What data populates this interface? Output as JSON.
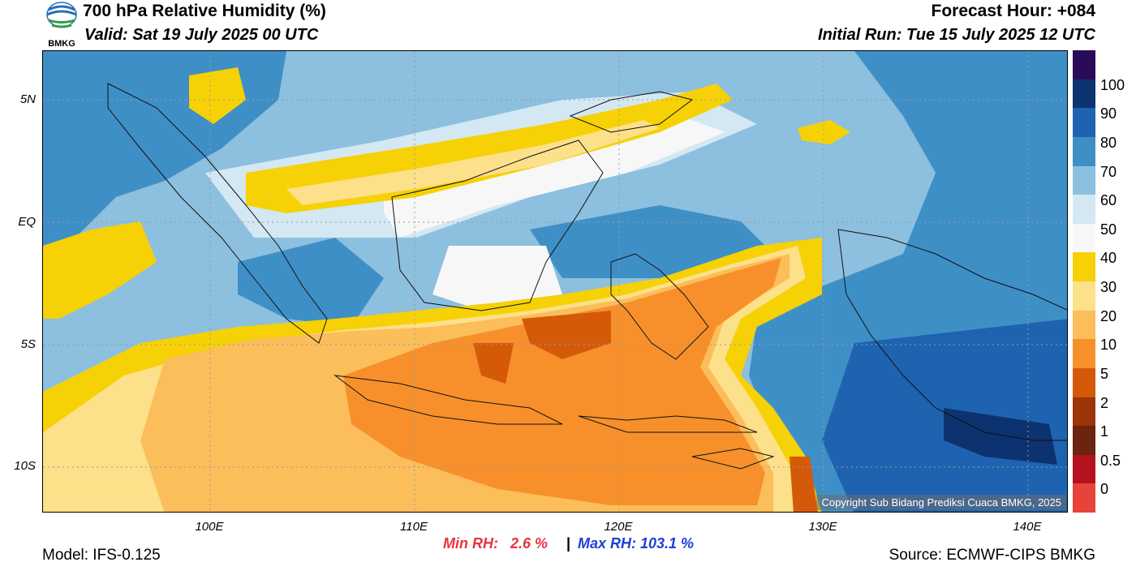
{
  "header": {
    "title": "700 hPa Relative Humidity (%)",
    "valid": "Valid: Sat 19 July 2025 00 UTC",
    "forecast_hour": "Forecast Hour: +084",
    "initial_run": "Initial Run: Tue 15 July 2025 12 UTC",
    "logo_text": "BMKG"
  },
  "map": {
    "lat_labels": [
      "5N",
      "EQ",
      "5S",
      "10S"
    ],
    "lon_labels": [
      "100E",
      "110E",
      "120E",
      "130E",
      "140E"
    ],
    "copyright": "Copyright Sub Bidang Prediksi Cuaca BMKG, 2025"
  },
  "legend": {
    "labels": [
      "100",
      "90",
      "80",
      "70",
      "60",
      "50",
      "40",
      "30",
      "20",
      "10",
      "5",
      "2",
      "1",
      "0.5",
      "0"
    ],
    "colors": [
      "#2a0b57",
      "#0d3270",
      "#1e63b0",
      "#3f8fc7",
      "#8dbfdf",
      "#d3e8f3",
      "#f7f7f7",
      "#f6d106",
      "#fde08a",
      "#fbbe5a",
      "#f7902b",
      "#d45a0a",
      "#9b3409",
      "#6a2410",
      "#b3121e",
      "#e8433a"
    ]
  },
  "stats": {
    "min_rh": "Min RH:   2.6 %",
    "separator": "|",
    "max_rh": "Max RH: 103.1 %"
  },
  "footer": {
    "model": "Model: IFS-0.125",
    "source": "Source: ECMWF-CIPS BMKG"
  }
}
